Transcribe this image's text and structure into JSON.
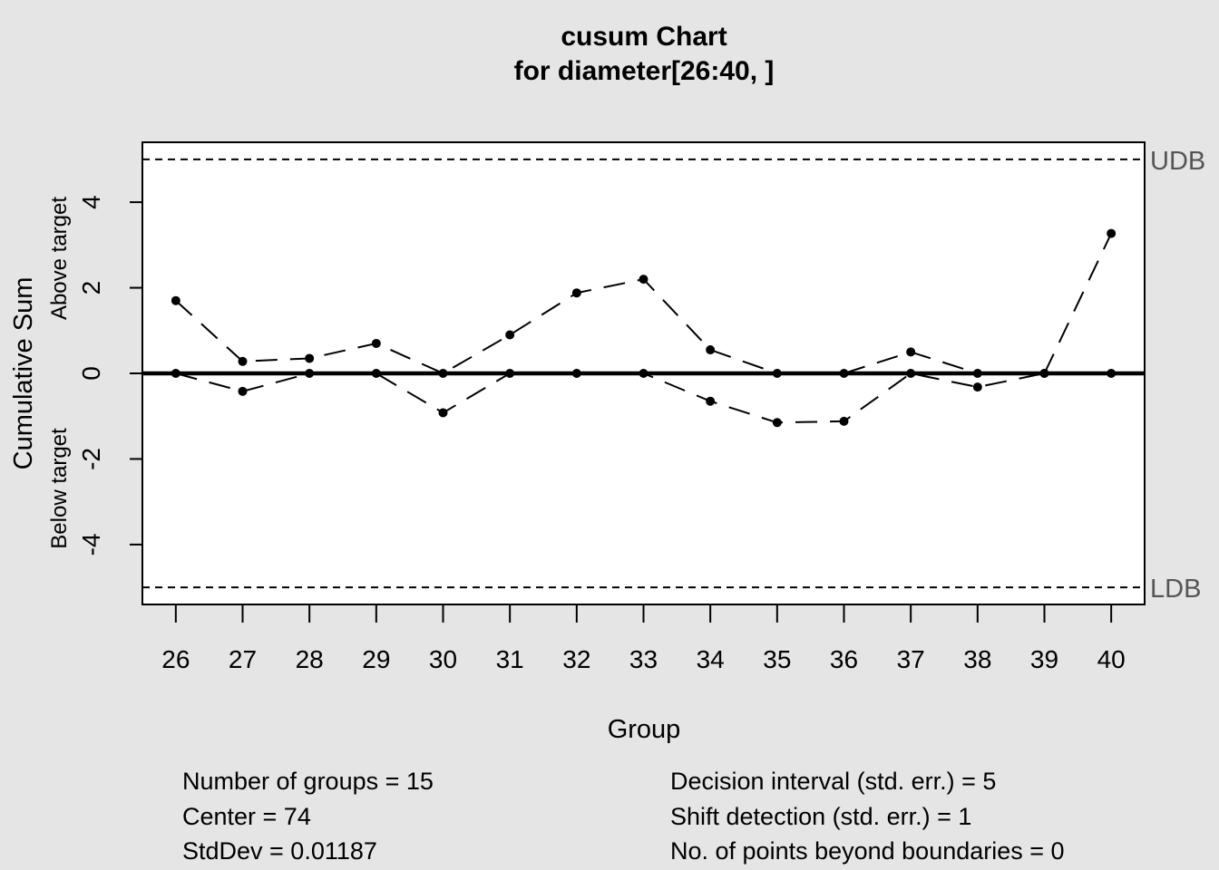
{
  "chart_data": {
    "type": "line",
    "title": "cusum Chart",
    "subtitle": "for diameter[26:40, ]",
    "xlabel": "Group",
    "ylabel": "Cumulative Sum",
    "ylabel_above": "Above target",
    "ylabel_below": "Below target",
    "x": [
      26,
      27,
      28,
      29,
      30,
      31,
      32,
      33,
      34,
      35,
      36,
      37,
      38,
      39,
      40
    ],
    "yticks": [
      -4,
      -2,
      0,
      2,
      4
    ],
    "ylim": [
      -5.4,
      5.4
    ],
    "series": [
      {
        "values": [
          1.7,
          0.28,
          0.35,
          0.7,
          0.0,
          0.9,
          1.88,
          2.2,
          0.55,
          0.0,
          0.0,
          0.5,
          0.0,
          0.0,
          3.27
        ]
      },
      {
        "values": [
          0.0,
          -0.42,
          0.0,
          0.0,
          -0.92,
          0.0,
          0.0,
          0.0,
          -0.65,
          -1.15,
          -1.12,
          0.0,
          -0.32,
          0.0,
          0.0
        ]
      }
    ],
    "center_line": 0,
    "upper_boundary": {
      "value": 5,
      "label": "UDB"
    },
    "lower_boundary": {
      "value": -5,
      "label": "LDB"
    },
    "colors": {
      "background": "#e5e5e5",
      "plot_bg": "#ffffff",
      "points": "#000000",
      "boundary_label": "#555555"
    }
  },
  "stats": {
    "groups": "Number of groups = 15",
    "center": "Center = 74",
    "stddev": "StdDev = 0.01187",
    "decision": "Decision interval (std. err.) = 5",
    "shift": "Shift detection (std. err.) = 1",
    "beyond": "No. of points beyond boundaries = 0"
  }
}
